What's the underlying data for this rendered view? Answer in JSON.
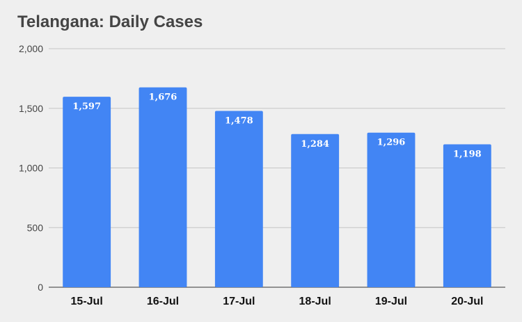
{
  "chart_data": {
    "type": "bar",
    "title": "Telangana: Daily Cases",
    "xlabel": "",
    "ylabel": "",
    "categories": [
      "15-Jul",
      "16-Jul",
      "17-Jul",
      "18-Jul",
      "19-Jul",
      "20-Jul"
    ],
    "values": [
      1597,
      1676,
      1478,
      1284,
      1296,
      1198
    ],
    "data_labels": [
      "1,597",
      "1,676",
      "1,478",
      "1,284",
      "1,296",
      "1,198"
    ],
    "ylim": [
      0,
      2000
    ],
    "yticks": [
      0,
      500,
      1000,
      1500,
      2000
    ],
    "ytick_labels": [
      "0",
      "500",
      "1,000",
      "1,500",
      "2,000"
    ],
    "grid": true,
    "legend": "none",
    "bar_color": "#4285f4"
  }
}
